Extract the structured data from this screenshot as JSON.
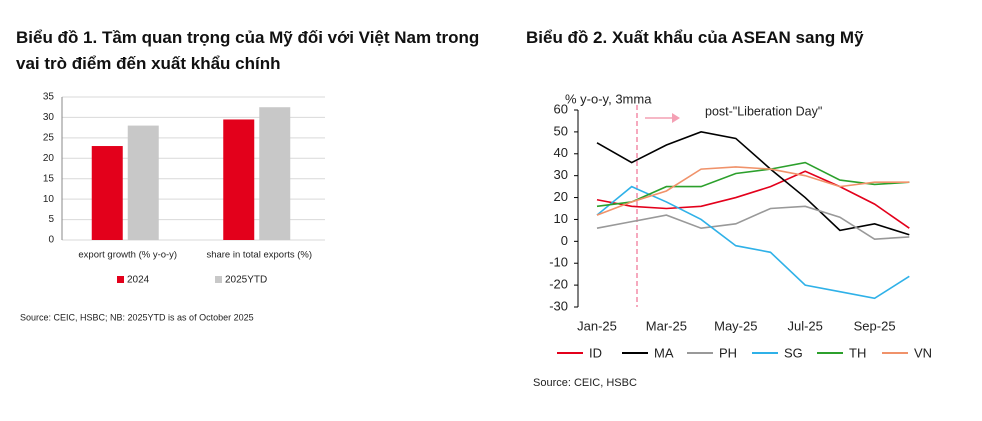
{
  "chart_data": [
    {
      "type": "bar",
      "title": "Biểu đồ 1. Tầm quan trọng của Mỹ đối với Việt Nam trong vai trò điểm đến xuất khẩu chính",
      "categories": [
        "export growth (% y-o-y)",
        "share in total exports (%)"
      ],
      "series": [
        {
          "name": "2024",
          "color": "#e3001b",
          "values": [
            23,
            29.5
          ]
        },
        {
          "name": "2025YTD",
          "color": "#c8c8c8",
          "values": [
            28,
            32.5
          ]
        }
      ],
      "ylim": [
        0,
        35
      ],
      "yticks": [
        0,
        5,
        10,
        15,
        20,
        25,
        30,
        35
      ],
      "grid": true,
      "note": "Source: CEIC, HSBC; NB: 2025YTD is as of October 2025"
    },
    {
      "type": "line",
      "title": "Biểu đồ 2. Xuất khẩu của ASEAN sang Mỹ",
      "y_label": "% y-o-y, 3mma",
      "annotation": "post-\"Liberation Day\"",
      "categories": [
        "Jan-25",
        null,
        "Mar-25",
        null,
        "May-25",
        null,
        "Jul-25",
        null,
        "Sep-25",
        null
      ],
      "series": [
        {
          "name": "ID",
          "color": "#e3001b",
          "values": [
            19,
            16,
            15,
            16,
            20,
            25,
            32,
            25,
            17,
            6
          ]
        },
        {
          "name": "MA",
          "color": "#000000",
          "values": [
            45,
            36,
            44,
            50,
            47,
            33,
            20,
            5,
            8,
            3
          ]
        },
        {
          "name": "PH",
          "color": "#999999",
          "values": [
            6,
            9,
            12,
            6,
            8,
            15,
            16,
            11,
            1,
            2
          ]
        },
        {
          "name": "SG",
          "color": "#2fb1e8",
          "values": [
            12,
            25,
            18,
            10,
            -2,
            -5,
            -20,
            -23,
            -26,
            -16
          ]
        },
        {
          "name": "TH",
          "color": "#2ca02c",
          "values": [
            16,
            18,
            25,
            25,
            31,
            33,
            36,
            28,
            26,
            27
          ]
        },
        {
          "name": "VN",
          "color": "#f0926a",
          "values": [
            12,
            18,
            23,
            33,
            34,
            33,
            30,
            25,
            27,
            27
          ]
        }
      ],
      "ylim": [
        -30,
        60
      ],
      "yticks": [
        -30,
        -20,
        -10,
        0,
        10,
        20,
        30,
        40,
        50,
        60
      ],
      "grid": false,
      "note": "Source: CEIC, HSBC"
    }
  ]
}
